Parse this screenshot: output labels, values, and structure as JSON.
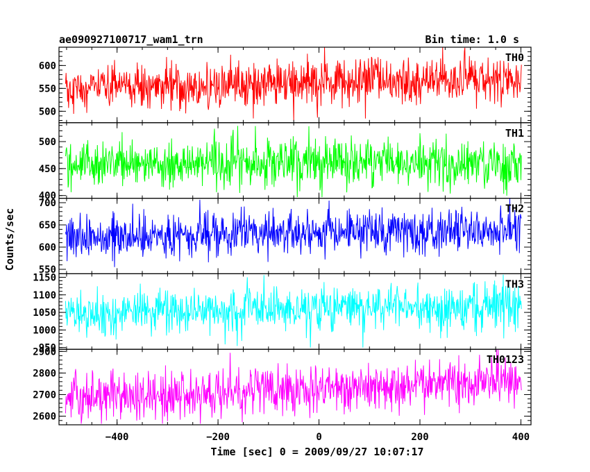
{
  "chart_data": {
    "type": "line",
    "title_left": "ae090927100717_wam1_trn",
    "title_right": "Bin time: 1.0 s",
    "xlabel": "Time [sec] 0 = 2009/09/27 10:07:17",
    "ylabel": "Counts/sec",
    "xlim": [
      -515,
      420
    ],
    "x_ticks": [
      -400,
      -200,
      0,
      200,
      400
    ],
    "x_tick_labels": [
      "−400",
      "−200",
      "0",
      "200",
      "400"
    ],
    "x_start": -502,
    "x_end": 401,
    "bin": 1.0,
    "panels": [
      {
        "name": "TH0",
        "color": "#ff0000",
        "ylim": [
          475,
          640
        ],
        "y_ticks": [
          500,
          550,
          600
        ],
        "y_tick_labels": [
          "500",
          "550",
          "600"
        ],
        "mean_start": 548,
        "mean_end": 572,
        "noise": 25,
        "min": 480,
        "max": 640
      },
      {
        "name": "TH1",
        "color": "#00ff00",
        "ylim": [
          395,
          535
        ],
        "y_ticks": [
          400,
          450,
          500
        ],
        "y_tick_labels": [
          "400",
          "450",
          "500"
        ],
        "mean_start": 458,
        "mean_end": 462,
        "noise": 22,
        "min": 397,
        "max": 533
      },
      {
        "name": "TH2",
        "color": "#0000ff",
        "ylim": [
          540,
          710
        ],
        "y_ticks": [
          550,
          600,
          650,
          700
        ],
        "y_tick_labels": [
          "550",
          "600",
          "650",
          "700"
        ],
        "mean_start": 625,
        "mean_end": 640,
        "noise": 25,
        "min": 545,
        "max": 710
      },
      {
        "name": "TH3",
        "color": "#00ffff",
        "ylim": [
          945,
          1160
        ],
        "y_ticks": [
          950,
          1000,
          1050,
          1100,
          1150
        ],
        "y_tick_labels": [
          "950",
          "1000",
          "1050",
          "1100",
          "1150"
        ],
        "mean_start": 1045,
        "mean_end": 1075,
        "noise": 33,
        "min": 950,
        "max": 1160
      },
      {
        "name": "TH0123",
        "color": "#ff00ff",
        "ylim": [
          2560,
          2910
        ],
        "y_ticks": [
          2600,
          2700,
          2800,
          2900
        ],
        "y_tick_labels": [
          "2600",
          "2700",
          "2800",
          "2900"
        ],
        "mean_start": 2680,
        "mean_end": 2765,
        "noise": 55,
        "min": 2565,
        "max": 2910
      }
    ]
  }
}
